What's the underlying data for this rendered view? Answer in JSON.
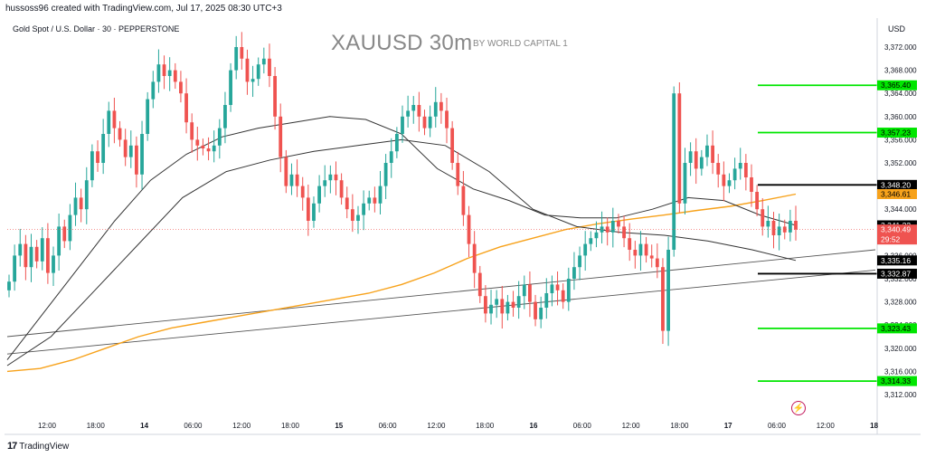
{
  "header": {
    "attribution": "hussoss96 created with TradingView.com, Jul 17, 2025 08:30 UTC+3",
    "symbol_line": "Gold Spot / U.S. Dollar · 30 · PEPPERSTONE",
    "watermark_title": "XAUUSD 30m",
    "watermark_sub": "BY WORLD CAPITAL 1",
    "currency": "USD"
  },
  "footer": {
    "brand": "TradingView",
    "logo_glyph": "17"
  },
  "icons": {
    "bolt": "lightning-icon"
  },
  "colors": {
    "up": "#26a69a",
    "down": "#ef5350",
    "level_green": "#00e600",
    "level_black": "#000000",
    "ma_orange": "#f7a21b",
    "ma_dark": "#333333",
    "trendline": "#555555"
  },
  "chart_data": {
    "type": "candlestick",
    "title": "XAUUSD 30m",
    "ylim": [
      3310,
      3375
    ],
    "y_ticks": [
      3312,
      3316,
      3320,
      3324,
      3328,
      3332,
      3336,
      3340,
      3344,
      3348,
      3352,
      3356,
      3360,
      3364,
      3368,
      3372
    ],
    "x_ticks": [
      "12:00",
      "18:00",
      "14",
      "06:00",
      "12:00",
      "18:00",
      "15",
      "06:00",
      "12:00",
      "18:00",
      "16",
      "06:00",
      "12:00",
      "18:00",
      "17",
      "06:00",
      "12:00",
      "18"
    ],
    "series_close": [
      3331.5,
      3336.0,
      3338.0,
      3334.0,
      3337.5,
      3335.0,
      3339.0,
      3333.0,
      3336.0,
      3341.0,
      3338.5,
      3343.0,
      3346.0,
      3344.0,
      3349.0,
      3354.0,
      3352.0,
      3357.0,
      3361.0,
      3358.0,
      3356.0,
      3353.0,
      3355.0,
      3350.0,
      3357.0,
      3363.0,
      3366.0,
      3369.0,
      3367.0,
      3368.0,
      3366.0,
      3364.0,
      3359.0,
      3356.0,
      3355.0,
      3354.5,
      3354.0,
      3355.0,
      3358.0,
      3362.0,
      3368.0,
      3372.0,
      3370.0,
      3366.0,
      3366.5,
      3369.0,
      3370.0,
      3367.0,
      3360.0,
      3353.0,
      3348.0,
      3350.0,
      3348.0,
      3346.0,
      3342.0,
      3345.0,
      3348.0,
      3349.0,
      3350.0,
      3349.0,
      3346.0,
      3344.0,
      3342.0,
      3343.0,
      3345.0,
      3346.0,
      3345.0,
      3348.0,
      3352.0,
      3354.0,
      3357.0,
      3360.0,
      3361.0,
      3362.0,
      3360.0,
      3358.0,
      3360.0,
      3362.5,
      3361.0,
      3358.0,
      3352.0,
      3348.0,
      3343.0,
      3338.0,
      3333.0,
      3329.0,
      3326.0,
      3327.5,
      3328.5,
      3326.0,
      3328.0,
      3327.0,
      3329.0,
      3331.0,
      3328.0,
      3325.0,
      3327.0,
      3329.5,
      3331.0,
      3330.0,
      3328.0,
      3332.0,
      3334.0,
      3336.0,
      3338.0,
      3339.0,
      3340.0,
      3341.0,
      3340.0,
      3342.0,
      3341.0,
      3339.0,
      3337.0,
      3336.0,
      3338.0,
      3336.0,
      3335.5,
      3334.0,
      3323.0,
      3337.0,
      3364.0,
      3345.0,
      3352.0,
      3354.0,
      3351.0,
      3353.0,
      3355.0,
      3352.0,
      3350.0,
      3348.0,
      3349.0,
      3351.0,
      3352.0,
      3349.5,
      3347.0,
      3344.0,
      3341.0,
      3342.0,
      3339.5,
      3341.0,
      3340.0,
      3342.0,
      3340.49
    ],
    "levels_green": [
      3365.4,
      3357.23,
      3323.43,
      3314.33
    ],
    "levels_black": [
      3348.2,
      3332.87
    ],
    "price_labels": [
      {
        "value": 3365.4,
        "text": "3,365.40",
        "style": "green"
      },
      {
        "value": 3357.23,
        "text": "3,357.23",
        "style": "green"
      },
      {
        "value": 3348.2,
        "text": "3,348.20",
        "style": "black"
      },
      {
        "value": 3346.61,
        "text": "3,346.61",
        "style": "orange"
      },
      {
        "value": 3341.22,
        "text": "3,341.22",
        "style": "black"
      },
      {
        "value": 3340.49,
        "text": "3,340.49",
        "style": "red"
      },
      {
        "value": 3335.16,
        "text": "3,335.16",
        "style": "black"
      },
      {
        "value": 3332.87,
        "text": "3,332.87",
        "style": "black"
      },
      {
        "value": 3323.43,
        "text": "3,323.43",
        "style": "green"
      },
      {
        "value": 3314.33,
        "text": "3,314.33",
        "style": "green"
      }
    ],
    "countdown": "29:52",
    "ma_orange": [
      3316.0,
      3316.5,
      3318.0,
      3320.0,
      3322.0,
      3323.5,
      3324.5,
      3325.5,
      3326.5,
      3327.5,
      3328.5,
      3329.5,
      3331.0,
      3333.0,
      3335.5,
      3337.5,
      3339.0,
      3340.5,
      3341.5,
      3342.3,
      3343.0,
      3343.8,
      3344.5,
      3345.5,
      3346.61
    ],
    "ma_dark_1": [
      3318.0,
      3326.0,
      3334.0,
      3342.0,
      3349.0,
      3353.5,
      3356.5,
      3358.0,
      3359.0,
      3360.0,
      3359.5,
      3357.0,
      3351.0,
      3347.5,
      3345.5,
      3343.0,
      3342.5,
      3342.5,
      3344.0,
      3346.0,
      3345.5,
      3343.0,
      3341.22
    ],
    "ma_dark_2": [
      3317.0,
      3322.0,
      3330.0,
      3338.0,
      3346.0,
      3350.5,
      3352.5,
      3354.0,
      3355.0,
      3356.0,
      3355.0,
      3350.5,
      3344.0,
      3341.0,
      3340.0,
      3339.5,
      3338.5,
      3337.0,
      3335.16
    ],
    "trendlines": [
      {
        "from": [
          "start",
          3322.0
        ],
        "to": [
          "end",
          3337.0
        ]
      },
      {
        "from": [
          "start",
          3319.0
        ],
        "to": [
          "end",
          3333.5
        ]
      }
    ]
  }
}
